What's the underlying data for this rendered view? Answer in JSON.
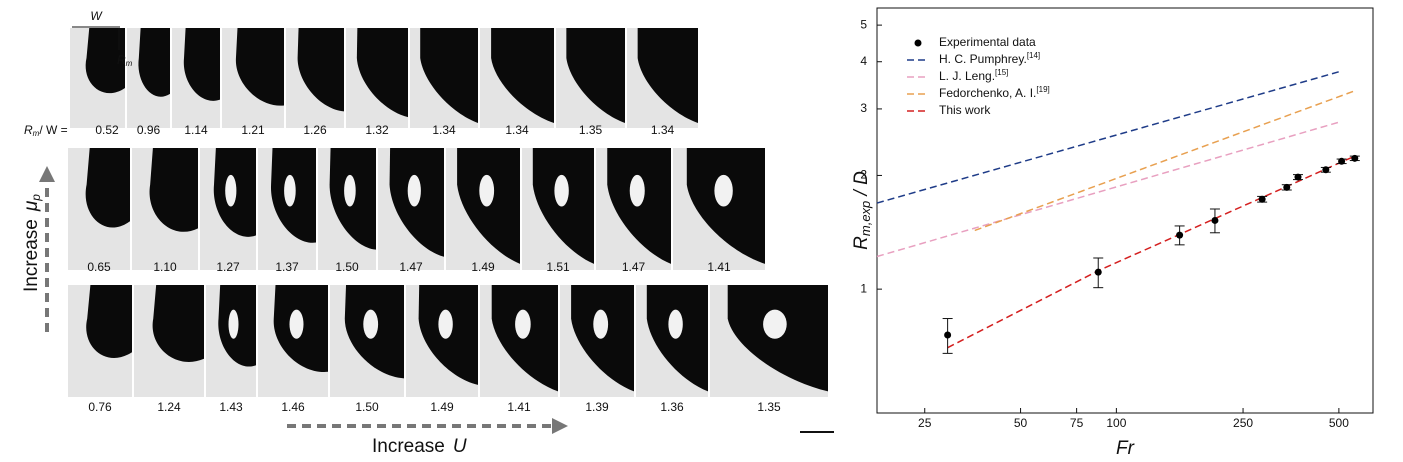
{
  "panels": {
    "w_label": "W",
    "rm_label": [
      "R",
      "m"
    ],
    "prefix": [
      "R",
      "m",
      "/ W ="
    ],
    "rows": [
      [
        "0.52",
        "0.96",
        "1.14",
        "1.21",
        "1.26",
        "1.32",
        "1.34",
        "1.34",
        "1.35",
        "1.34"
      ],
      [
        "0.65",
        "1.10",
        "1.27",
        "1.37",
        "1.50",
        "1.47",
        "1.49",
        "1.51",
        "1.47",
        "1.41"
      ],
      [
        "0.76",
        "1.24",
        "1.43",
        "1.46",
        "1.50",
        "1.49",
        "1.41",
        "1.39",
        "1.36",
        "1.35"
      ]
    ],
    "y_arrow": [
      "Increase",
      "μ",
      "p"
    ],
    "x_arrow": [
      "Increase",
      "U"
    ]
  },
  "chart_data": {
    "type": "scatter",
    "xlabel": "Fr",
    "ylabel": [
      "R",
      "m,exp",
      " / D"
    ],
    "xscale": "log",
    "yscale": "log",
    "xlim": [
      17.7,
      640
    ],
    "ylim": [
      0.47,
      5.55
    ],
    "xticks": [
      25,
      50,
      75,
      100,
      250,
      500
    ],
    "yticks": [
      1,
      2,
      3,
      4,
      5
    ],
    "legend": "upper left",
    "series": [
      {
        "name": "Experimental data",
        "type": "scatter",
        "color": "#000000",
        "x": [
          29.5,
          87.7,
          158,
          204,
          287,
          343,
          372,
          455,
          510,
          561
        ],
        "values": [
          0.756,
          1.109,
          1.39,
          1.52,
          1.73,
          1.86,
          1.98,
          2.07,
          2.18,
          2.22
        ],
        "errors": [
          0.08,
          0.1,
          0.08,
          0.11,
          0.03,
          0.03,
          0.03,
          0.03,
          0.03,
          0.03
        ]
      },
      {
        "name": "H. C. Pumphrey.",
        "ref": "[14]",
        "type": "line",
        "color": "#1f3c88",
        "x": [
          17.7,
          510
        ],
        "values": [
          1.69,
          3.78
        ]
      },
      {
        "name": "L. J. Leng.",
        "ref": "[15]",
        "type": "line",
        "color": "#e8a0c0",
        "x": [
          17.7,
          510
        ],
        "values": [
          1.22,
          2.78
        ]
      },
      {
        "name": "Fedorchenko, A. I.",
        "ref": "[19]",
        "type": "line",
        "color": "#e8a050",
        "x": [
          35.9,
          561
        ],
        "values": [
          1.43,
          3.35
        ]
      },
      {
        "name": "This work",
        "type": "line",
        "color": "#d42020",
        "x": [
          29.5,
          88,
          561
        ],
        "values": [
          0.7,
          1.12,
          2.25
        ]
      }
    ]
  }
}
